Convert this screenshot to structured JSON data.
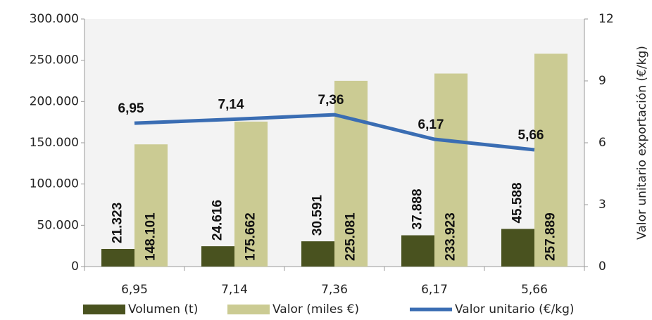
{
  "chart_data": {
    "type": "bar",
    "categories": [
      "6,95",
      "7,14",
      "7,36",
      "6,17",
      "5,66"
    ],
    "series": [
      {
        "name": "Volumen (t)",
        "type": "bar",
        "color": "#49521f",
        "values": [
          21323,
          24616,
          30591,
          37888,
          45588
        ],
        "value_labels": [
          "21.323",
          "24.616",
          "30.591",
          "37.888",
          "45.588"
        ]
      },
      {
        "name": "Valor (miles €)",
        "type": "bar",
        "color": "#cbcb93",
        "values": [
          148101,
          175662,
          225081,
          233923,
          257889
        ],
        "value_labels": [
          "148.101",
          "175.662",
          "225.081",
          "233.923",
          "257.889"
        ]
      },
      {
        "name": "Valor unitario (€/kg)",
        "type": "line",
        "axis": "y2",
        "color": "#3a6db3",
        "values": [
          6.95,
          7.14,
          7.36,
          6.17,
          5.66
        ],
        "value_labels": [
          "6,95",
          "7,14",
          "7,36",
          "6,17",
          "5,66"
        ]
      }
    ],
    "ylim": [
      0,
      300000
    ],
    "yticks": [
      0,
      {
        "value": 50000,
        "label": "50.000"
      },
      {
        "value": 100000,
        "label": "100.000"
      },
      {
        "value": 150000,
        "label": "150.000"
      },
      {
        "value": 200000,
        "label": "200.000"
      },
      {
        "value": 250000,
        "label": "250.000"
      },
      {
        "value": 300000,
        "label": "300.000"
      }
    ],
    "y2label": "Valor unitario exportación (€/kg)",
    "y2lim": [
      0,
      12
    ],
    "y2ticks": [
      0,
      3,
      6,
      9,
      12
    ]
  }
}
